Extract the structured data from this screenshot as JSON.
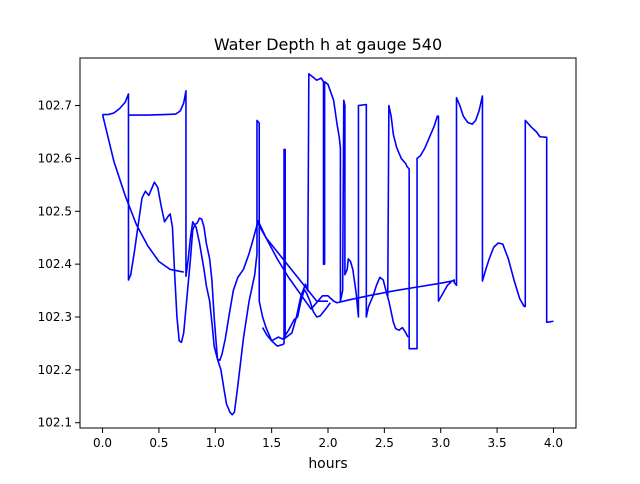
{
  "chart_data": {
    "type": "line",
    "title": "Water Depth h at gauge 540",
    "xlabel": "hours",
    "ylabel": "",
    "xlim": [
      -0.2,
      4.2
    ],
    "ylim": [
      102.09,
      102.79
    ],
    "xticks": [
      0.0,
      0.5,
      1.0,
      1.5,
      2.0,
      2.5,
      3.0,
      3.5,
      4.0
    ],
    "xtick_labels": [
      "0.0",
      "0.5",
      "1.0",
      "1.5",
      "2.0",
      "2.5",
      "3.0",
      "3.5",
      "4.0"
    ],
    "yticks": [
      102.1,
      102.2,
      102.3,
      102.4,
      102.5,
      102.6,
      102.7
    ],
    "ytick_labels": [
      "102.1",
      "102.2",
      "102.3",
      "102.4",
      "102.5",
      "102.6",
      "102.7"
    ],
    "grid": false,
    "line_color": "#0000ff",
    "series": [
      {
        "name": "",
        "points": [
          [
            0.0,
            102.683
          ],
          [
            0.05,
            102.683
          ],
          [
            0.1,
            102.686
          ],
          [
            0.15,
            102.694
          ],
          [
            0.2,
            102.706
          ],
          [
            0.23,
            102.722
          ],
          [
            0.23,
            102.37
          ],
          [
            0.25,
            102.38
          ],
          [
            0.28,
            102.42
          ],
          [
            0.32,
            102.48
          ],
          [
            0.35,
            102.525
          ],
          [
            0.38,
            102.538
          ],
          [
            0.41,
            102.53
          ],
          [
            0.44,
            102.545
          ],
          [
            0.46,
            102.555
          ],
          [
            0.49,
            102.545
          ],
          [
            0.52,
            102.51
          ],
          [
            0.55,
            102.48
          ],
          [
            0.58,
            102.49
          ],
          [
            0.6,
            102.495
          ],
          [
            0.62,
            102.47
          ],
          [
            0.64,
            102.38
          ],
          [
            0.66,
            102.3
          ],
          [
            0.68,
            102.255
          ],
          [
            0.7,
            102.252
          ],
          [
            0.72,
            102.27
          ],
          [
            0.75,
            102.34
          ],
          [
            0.78,
            102.41
          ],
          [
            0.8,
            102.465
          ],
          [
            0.82,
            102.475
          ],
          [
            0.84,
            102.478
          ],
          [
            0.86,
            102.487
          ],
          [
            0.88,
            102.485
          ],
          [
            0.9,
            102.47
          ],
          [
            0.92,
            102.44
          ],
          [
            0.95,
            102.41
          ],
          [
            0.97,
            102.37
          ],
          [
            0.99,
            102.3
          ],
          [
            1.01,
            102.245
          ],
          [
            1.02,
            102.22
          ],
          [
            1.04,
            102.218
          ],
          [
            1.06,
            102.23
          ],
          [
            1.09,
            102.26
          ],
          [
            1.12,
            102.3
          ],
          [
            1.16,
            102.35
          ],
          [
            1.2,
            102.375
          ],
          [
            1.25,
            102.39
          ],
          [
            1.3,
            102.42
          ],
          [
            1.34,
            102.45
          ],
          [
            1.38,
            102.482
          ],
          [
            1.45,
            102.45
          ],
          [
            1.55,
            102.41
          ],
          [
            1.65,
            102.375
          ],
          [
            1.75,
            102.345
          ],
          [
            1.85,
            102.315
          ],
          [
            1.95,
            102.34
          ],
          [
            2.0,
            102.34
          ],
          [
            2.05,
            102.33
          ],
          [
            2.08,
            102.327
          ],
          [
            2.2,
            102.333
          ],
          [
            2.4,
            102.342
          ],
          [
            2.6,
            102.35
          ],
          [
            2.8,
            102.357
          ],
          [
            3.0,
            102.364
          ],
          [
            3.1,
            102.368
          ]
        ]
      },
      {
        "name": "",
        "points": [
          [
            0.0,
            102.683
          ],
          [
            0.1,
            102.595
          ],
          [
            0.2,
            102.53
          ],
          [
            0.3,
            102.475
          ],
          [
            0.4,
            102.435
          ],
          [
            0.5,
            102.405
          ],
          [
            0.6,
            102.39
          ],
          [
            0.72,
            102.385
          ]
        ]
      },
      {
        "name": "",
        "points": [
          [
            0.23,
            102.682
          ],
          [
            0.4,
            102.682
          ],
          [
            0.55,
            102.683
          ],
          [
            0.65,
            102.684
          ],
          [
            0.69,
            102.69
          ],
          [
            0.72,
            102.705
          ],
          [
            0.74,
            102.728
          ],
          [
            0.74,
            102.377
          ],
          [
            0.76,
            102.41
          ],
          [
            0.78,
            102.45
          ],
          [
            0.8,
            102.48
          ],
          [
            0.83,
            102.47
          ],
          [
            0.86,
            102.44
          ],
          [
            0.9,
            102.39
          ],
          [
            0.92,
            102.36
          ],
          [
            0.95,
            102.33
          ],
          [
            0.97,
            102.29
          ],
          [
            0.99,
            102.245
          ],
          [
            1.02,
            102.22
          ],
          [
            1.05,
            102.2
          ],
          [
            1.08,
            102.16
          ],
          [
            1.1,
            102.135
          ],
          [
            1.13,
            102.12
          ],
          [
            1.15,
            102.115
          ],
          [
            1.17,
            102.12
          ],
          [
            1.2,
            102.17
          ],
          [
            1.25,
            102.26
          ],
          [
            1.3,
            102.33
          ],
          [
            1.35,
            102.38
          ],
          [
            1.37,
            102.42
          ],
          [
            1.37,
            102.672
          ],
          [
            1.39,
            102.667
          ],
          [
            1.39,
            102.33
          ],
          [
            1.42,
            102.3
          ],
          [
            1.45,
            102.28
          ],
          [
            1.5,
            102.255
          ],
          [
            1.55,
            102.245
          ],
          [
            1.6,
            102.248
          ],
          [
            1.61,
            102.25
          ],
          [
            1.61,
            102.617
          ],
          [
            1.62,
            102.617
          ],
          [
            1.62,
            102.26
          ],
          [
            1.65,
            102.265
          ],
          [
            1.68,
            102.27
          ],
          [
            1.72,
            102.3
          ],
          [
            1.76,
            102.34
          ],
          [
            1.8,
            102.362
          ],
          [
            1.82,
            102.35
          ],
          [
            1.83,
            102.76
          ],
          [
            1.86,
            102.755
          ],
          [
            1.9,
            102.748
          ],
          [
            1.94,
            102.752
          ],
          [
            1.96,
            102.745
          ],
          [
            1.96,
            102.4
          ],
          [
            1.97,
            102.4
          ],
          [
            1.97,
            102.745
          ],
          [
            2.0,
            102.74
          ],
          [
            2.05,
            102.71
          ],
          [
            2.08,
            102.665
          ],
          [
            2.1,
            102.64
          ],
          [
            2.11,
            102.62
          ],
          [
            2.11,
            102.33
          ],
          [
            2.13,
            102.35
          ],
          [
            2.14,
            102.71
          ],
          [
            2.15,
            102.7
          ],
          [
            2.15,
            102.38
          ],
          [
            2.17,
            102.39
          ],
          [
            2.18,
            102.41
          ],
          [
            2.2,
            102.405
          ],
          [
            2.22,
            102.39
          ],
          [
            2.25,
            102.345
          ],
          [
            2.27,
            102.3
          ],
          [
            2.27,
            102.7
          ],
          [
            2.34,
            102.702
          ],
          [
            2.34,
            102.3
          ],
          [
            2.36,
            102.32
          ],
          [
            2.4,
            102.34
          ],
          [
            2.43,
            102.36
          ],
          [
            2.46,
            102.375
          ],
          [
            2.49,
            102.37
          ],
          [
            2.52,
            102.345
          ],
          [
            2.53,
            102.34
          ],
          [
            2.54,
            102.7
          ],
          [
            2.56,
            102.68
          ],
          [
            2.58,
            102.645
          ],
          [
            2.61,
            102.62
          ],
          [
            2.65,
            102.6
          ],
          [
            2.69,
            102.59
          ],
          [
            2.7,
            102.585
          ],
          [
            2.72,
            102.58
          ],
          [
            2.72,
            102.24
          ],
          [
            2.79,
            102.24
          ],
          [
            2.79,
            102.6
          ],
          [
            2.82,
            102.605
          ],
          [
            2.86,
            102.62
          ],
          [
            2.9,
            102.64
          ],
          [
            2.94,
            102.66
          ],
          [
            2.97,
            102.68
          ],
          [
            2.98,
            102.68
          ],
          [
            2.98,
            102.33
          ],
          [
            3.02,
            102.345
          ],
          [
            3.06,
            102.36
          ],
          [
            3.1,
            102.368
          ],
          [
            3.12,
            102.37
          ],
          [
            3.12,
            102.365
          ],
          [
            3.14,
            102.36
          ],
          [
            3.14,
            102.715
          ],
          [
            3.17,
            102.7
          ],
          [
            3.2,
            102.68
          ],
          [
            3.24,
            102.668
          ],
          [
            3.28,
            102.665
          ],
          [
            3.31,
            102.672
          ],
          [
            3.34,
            102.69
          ],
          [
            3.37,
            102.718
          ],
          [
            3.37,
            102.368
          ],
          [
            3.4,
            102.39
          ],
          [
            3.43,
            102.41
          ],
          [
            3.47,
            102.432
          ],
          [
            3.51,
            102.44
          ],
          [
            3.55,
            102.438
          ],
          [
            3.6,
            102.41
          ],
          [
            3.65,
            102.37
          ],
          [
            3.7,
            102.335
          ],
          [
            3.74,
            102.32
          ],
          [
            3.75,
            102.32
          ],
          [
            3.75,
            102.672
          ],
          [
            3.8,
            102.66
          ],
          [
            3.85,
            102.65
          ],
          [
            3.88,
            102.641
          ],
          [
            3.94,
            102.64
          ],
          [
            3.94,
            102.29
          ],
          [
            4.0,
            102.292
          ]
        ]
      },
      {
        "name": "",
        "points": [
          [
            1.37,
            102.48
          ],
          [
            1.45,
            102.45
          ],
          [
            1.6,
            102.41
          ],
          [
            1.75,
            102.37
          ],
          [
            1.9,
            102.33
          ],
          [
            2.0,
            102.33
          ]
        ]
      },
      {
        "name": "",
        "points": [
          [
            1.42,
            102.28
          ],
          [
            1.46,
            102.265
          ],
          [
            1.5,
            102.255
          ],
          [
            1.56,
            102.262
          ],
          [
            1.6,
            102.258
          ],
          [
            1.65,
            102.275
          ],
          [
            1.7,
            102.295
          ],
          [
            1.73,
            102.3
          ],
          [
            1.76,
            102.33
          ],
          [
            1.79,
            102.352
          ],
          [
            1.81,
            102.345
          ],
          [
            1.84,
            102.33
          ],
          [
            1.87,
            102.31
          ],
          [
            1.9,
            102.3
          ],
          [
            1.93,
            102.302
          ],
          [
            1.96,
            102.31
          ],
          [
            1.99,
            102.318
          ],
          [
            2.02,
            102.327
          ]
        ]
      },
      {
        "name": "",
        "points": [
          [
            2.52,
            102.345
          ],
          [
            2.54,
            102.33
          ],
          [
            2.56,
            102.31
          ],
          [
            2.58,
            102.29
          ],
          [
            2.6,
            102.278
          ],
          [
            2.63,
            102.275
          ],
          [
            2.66,
            102.28
          ],
          [
            2.69,
            102.27
          ],
          [
            2.71,
            102.262
          ]
        ]
      }
    ]
  }
}
